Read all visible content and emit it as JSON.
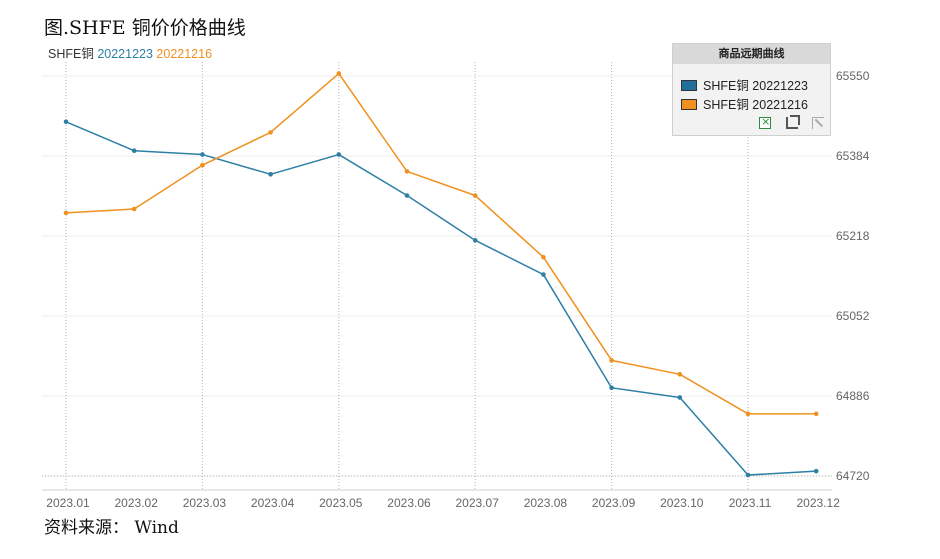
{
  "title": "图.SHFE 铜价价格曲线",
  "series_header": [
    {
      "text": "SHFE铜",
      "color": "#333333"
    },
    {
      "text": " 20221223",
      "color": "#2e7fa5"
    },
    {
      "text": " 20221216",
      "color": "#f0901f"
    }
  ],
  "source": "资料来源：  Wind",
  "legend": {
    "title": "商品远期曲线",
    "items": [
      {
        "label": "SHFE铜 20221223",
        "color": "#1f6f9a"
      },
      {
        "label": "SHFE铜 20221216",
        "color": "#f0901f"
      }
    ],
    "tools": [
      "excel-export-icon",
      "crop-icon",
      "expand-icon"
    ]
  },
  "chart_data": {
    "type": "line",
    "categories": [
      "2023.01",
      "2023.02",
      "2023.03",
      "2023.04",
      "2023.05",
      "2023.06",
      "2023.07",
      "2023.08",
      "2023.09",
      "2023.10",
      "2023.11",
      "2023.12"
    ],
    "series": [
      {
        "name": "SHFE铜 20221223",
        "color": "#2e7fa5",
        "values": [
          65455,
          65395,
          65387,
          65346,
          65387,
          65302,
          65209,
          65138,
          64903,
          64883,
          64722,
          64730
        ]
      },
      {
        "name": "SHFE铜 20221216",
        "color": "#f0901f",
        "values": [
          65266,
          65274,
          65365,
          65433,
          65555,
          65352,
          65302,
          65174,
          64960,
          64931,
          64849,
          64849
        ]
      }
    ],
    "yticks": [
      64720,
      64886,
      65052,
      65218,
      65384,
      65550
    ],
    "ylim": [
      64710,
      65565
    ],
    "grid": true,
    "legend": "top-right"
  }
}
